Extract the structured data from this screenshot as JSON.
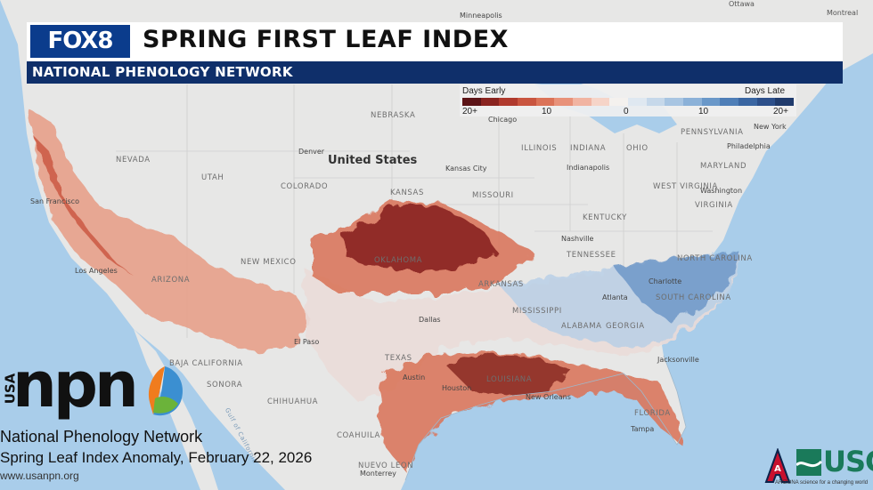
{
  "header": {
    "logo_text": "FOX8",
    "title": "SPRING FIRST LEAF INDEX",
    "subtitle": "NATIONAL PHENOLOGY NETWORK"
  },
  "legend": {
    "label_early": "Days Early",
    "label_late": "Days Late",
    "ticks": [
      "20+",
      "10",
      "0",
      "10",
      "20+"
    ],
    "colors": [
      "#5c1417",
      "#8a2420",
      "#b03a2e",
      "#c9553f",
      "#db7358",
      "#e8927a",
      "#f1b4a2",
      "#f6d4c8",
      "#f4f1ee",
      "#dfe8f1",
      "#c6d8ea",
      "#a8c5e2",
      "#8bb1d8",
      "#6a98c9",
      "#4e7eb7",
      "#3a66a2",
      "#2c4f8a",
      "#203b6c"
    ]
  },
  "map": {
    "country": "United States",
    "states": [
      "NEBRASKA",
      "NEVADA",
      "UTAH",
      "COLORADO",
      "KANSAS",
      "MISSOURI",
      "ILLINOIS",
      "INDIANA",
      "OHIO",
      "KENTUCKY",
      "TENNESSEE",
      "OKLAHOMA",
      "ARKANSAS",
      "MISSISSIPPI",
      "ALABAMA",
      "GEORGIA",
      "TEXAS",
      "LOUISIANA",
      "NORTH CAROLINA",
      "SOUTH CAROLINA",
      "WEST VIRGINIA",
      "VIRGINIA",
      "PENNSYLVANIA",
      "MARYLAND",
      "NEW MEXICO",
      "ARIZONA",
      "FLORIDA"
    ],
    "cities": [
      "Minneapolis",
      "Denver",
      "Kansas City",
      "Indianapolis",
      "Nashville",
      "Philadelphia",
      "New York",
      "Washington",
      "Dallas",
      "Atlanta",
      "Houston",
      "New Orleans",
      "San Francisco",
      "Los Angeles",
      "Chicago",
      "Charlotte",
      "Tampa",
      "Monterrey",
      "Ottawa",
      "Montreal",
      "El Paso",
      "Austin",
      "Jacksonville"
    ],
    "mexico_states": [
      "SONORA",
      "CHIHUAHUA",
      "COAHUILA",
      "NUEVO LEON",
      "BAJA CALIFORNIA"
    ],
    "water": [
      "Gulf of California"
    ]
  },
  "branding": {
    "npn_word": "npn",
    "npn_usa": "USA",
    "npn_fullname": "National Phenology Network",
    "index_date": "Spring Leaf Index Anomaly, February 22, 2026",
    "url": "www.usanpn.org",
    "ua_letter": "A",
    "usgs": "USGS",
    "az_tagline": "ARIZONA  science for a changing world"
  },
  "colors": {
    "ocean": "#a9cdea",
    "land": "#e7e7e6",
    "header_blue": "#0f2f6a",
    "logo_blue": "#0b3c8c",
    "early_dark": "#7a1e1c",
    "late_blue": "#4e7eb7"
  }
}
